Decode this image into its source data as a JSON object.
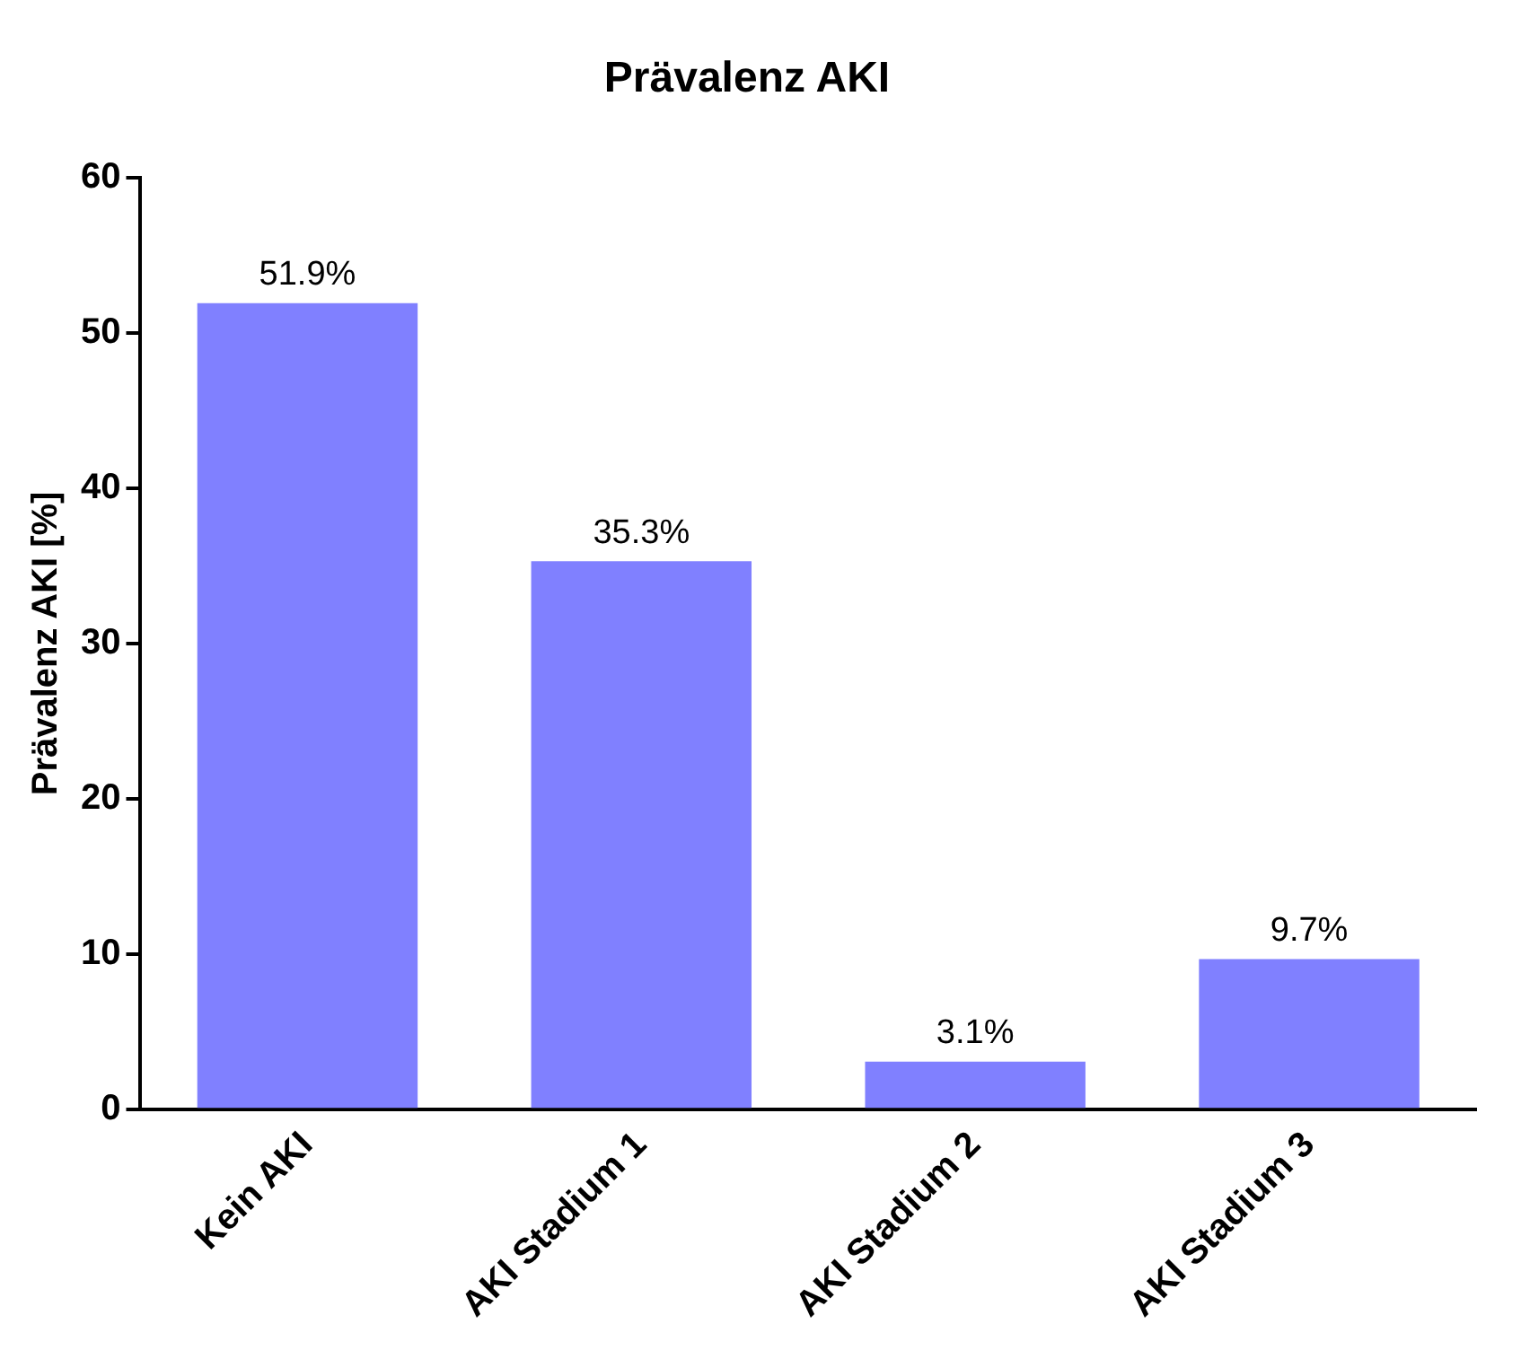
{
  "chart_data": {
    "type": "bar",
    "title": "Prävalenz AKI",
    "ylabel": "Prävalenz AKI [%]",
    "categories": [
      "Kein AKI",
      "AKI Stadium 1",
      "AKI Stadium 2",
      "AKI Stadium 3"
    ],
    "values": [
      51.9,
      35.3,
      3.1,
      9.7
    ],
    "value_labels": [
      "51.9%",
      "35.3%",
      "3.1%",
      "9.7%"
    ],
    "color": "#8080ff",
    "ylim": [
      0,
      60
    ],
    "yticks": [
      0,
      10,
      20,
      30,
      40,
      50,
      60
    ],
    "grid": false,
    "legend": false
  }
}
